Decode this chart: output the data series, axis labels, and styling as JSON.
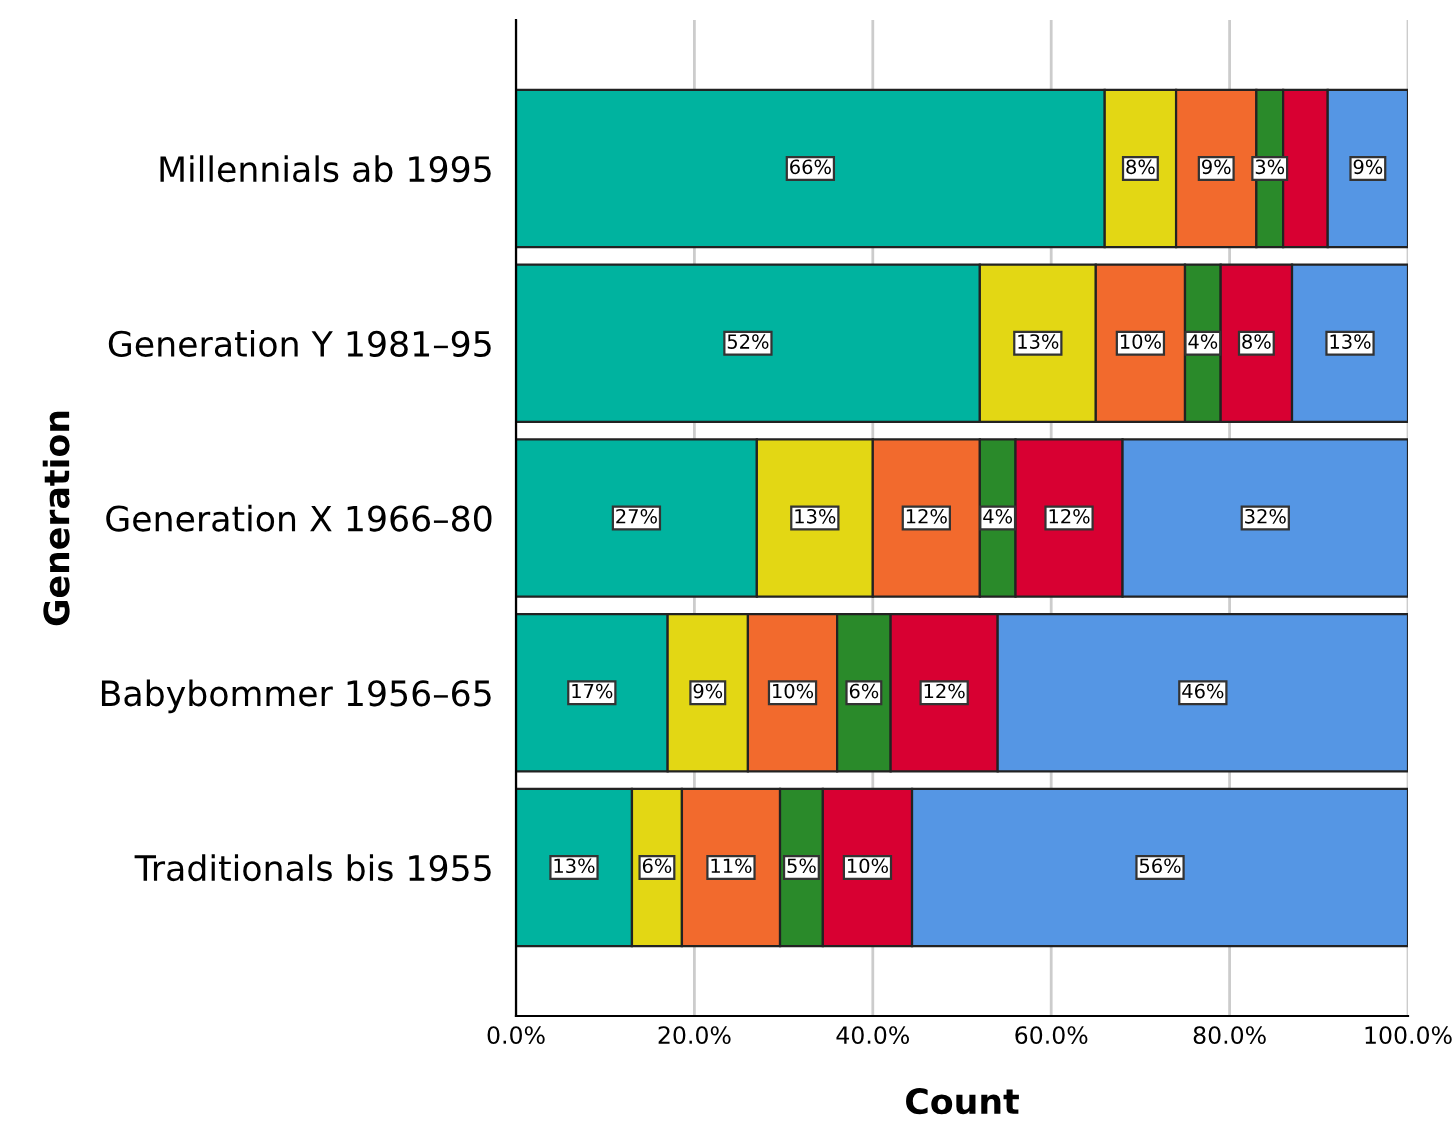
{
  "chart_data": {
    "type": "bar",
    "orientation": "horizontal",
    "stacked": true,
    "xlabel": "Count",
    "ylabel": "Generation",
    "categories": [
      "Millennials ab 1995",
      "Generation Y 1981–95",
      "Generation X 1966–80",
      "Babybommer 1956–65",
      "Traditionals bis 1955"
    ],
    "series": [
      {
        "color": "#00b39f",
        "values": [
          66,
          52,
          27,
          17,
          13
        ],
        "value_labels": [
          "66%",
          "52%",
          "27%",
          "17%",
          "13%"
        ]
      },
      {
        "color": "#e3d714",
        "values": [
          8,
          13,
          13,
          9,
          5.6
        ],
        "value_labels": [
          "8%",
          "13%",
          "13%",
          "9%",
          "6%"
        ]
      },
      {
        "color": "#f26a2d",
        "values": [
          9,
          10,
          12,
          10,
          11
        ],
        "value_labels": [
          "9%",
          "10%",
          "12%",
          "10%",
          "11%"
        ]
      },
      {
        "color": "#2a8a2a",
        "values": [
          3,
          4,
          4,
          6,
          4.8
        ],
        "value_labels": [
          "3%",
          "4%",
          "4%",
          "6%",
          "5%"
        ]
      },
      {
        "color": "#d80032",
        "values": [
          5,
          8,
          12,
          12,
          10
        ],
        "value_labels": [
          null,
          "8%",
          "12%",
          "12%",
          "10%"
        ]
      },
      {
        "color": "#5596e4",
        "values": [
          9,
          13,
          32,
          46,
          55.6
        ],
        "value_labels": [
          "9%",
          "13%",
          "32%",
          "46%",
          "56%"
        ]
      }
    ],
    "xlim": [
      0,
      100
    ],
    "xticks": [
      {
        "value": 0,
        "label": "0.0%"
      },
      {
        "value": 20,
        "label": "20.0%"
      },
      {
        "value": 40,
        "label": "40.0%"
      },
      {
        "value": 60,
        "label": "60.0%"
      },
      {
        "value": 80,
        "label": "80.0%"
      },
      {
        "value": 100,
        "label": "100.0%"
      }
    ],
    "grid": "x"
  }
}
